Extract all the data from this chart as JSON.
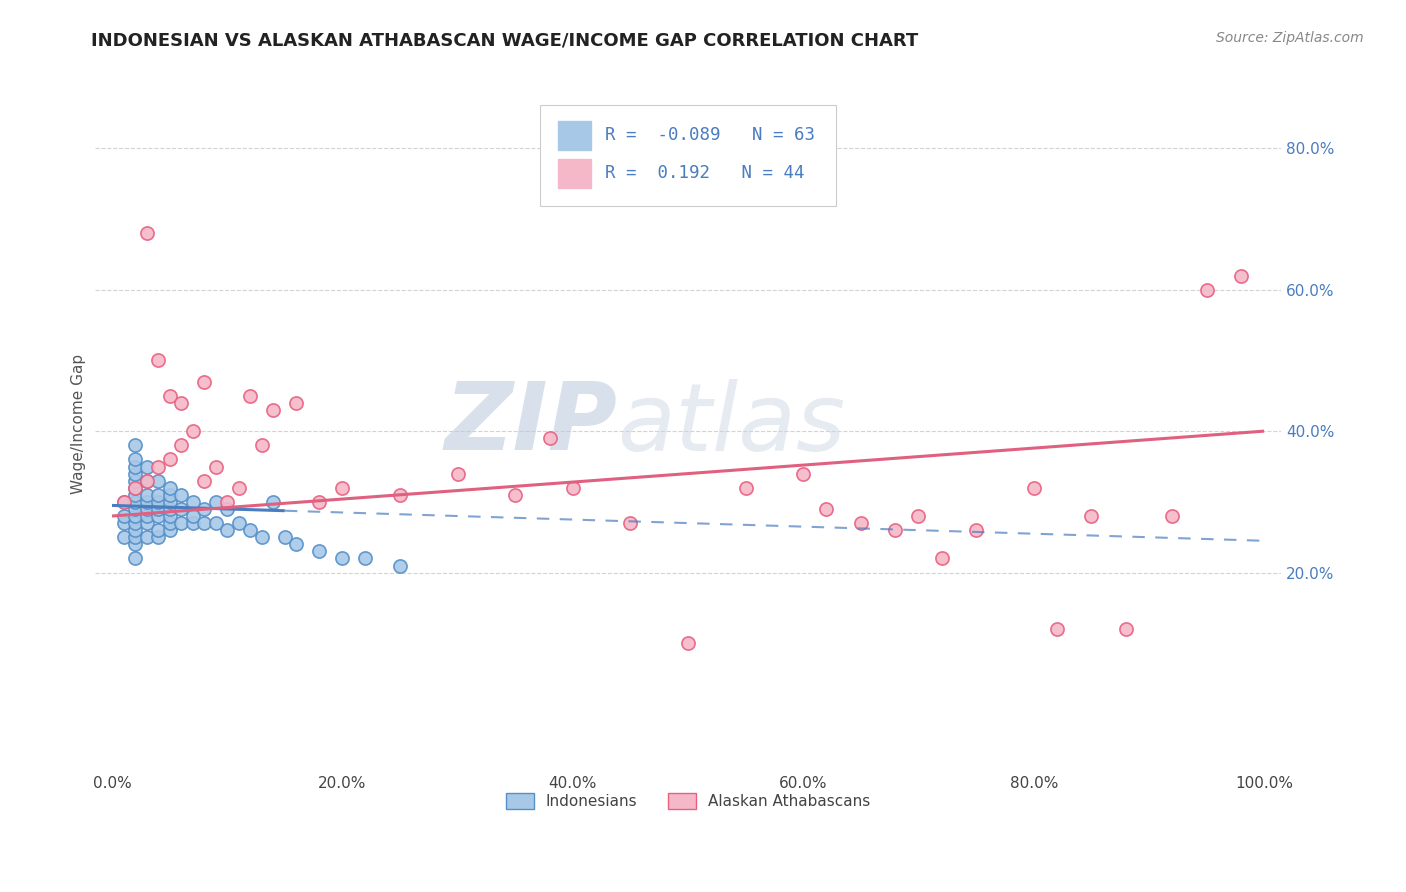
{
  "title": "INDONESIAN VS ALASKAN ATHABASCAN WAGE/INCOME GAP CORRELATION CHART",
  "source": "Source: ZipAtlas.com",
  "ylabel": "Wage/Income Gap",
  "legend_label1": "Indonesians",
  "legend_label2": "Alaskan Athabascans",
  "r1": -0.089,
  "n1": 63,
  "r2": 0.192,
  "n2": 44,
  "color1_face": "#a8c8e8",
  "color2_face": "#f4b8c8",
  "color1_edge": "#5590c8",
  "color2_edge": "#e86080",
  "line1_color": "#4a7cc0",
  "line2_color": "#e06080",
  "watermark_color": "#d0dcea",
  "xlim": [
    0.0,
    1.0
  ],
  "ylim": [
    -0.08,
    0.9
  ],
  "xticks": [
    0.0,
    0.2,
    0.4,
    0.6,
    0.8,
    1.0
  ],
  "yticks": [
    0.2,
    0.4,
    0.6,
    0.8
  ],
  "indonesians_x": [
    0.01,
    0.01,
    0.01,
    0.01,
    0.02,
    0.02,
    0.02,
    0.02,
    0.02,
    0.02,
    0.02,
    0.02,
    0.02,
    0.02,
    0.02,
    0.02,
    0.02,
    0.02,
    0.02,
    0.03,
    0.03,
    0.03,
    0.03,
    0.03,
    0.03,
    0.03,
    0.03,
    0.04,
    0.04,
    0.04,
    0.04,
    0.04,
    0.04,
    0.04,
    0.05,
    0.05,
    0.05,
    0.05,
    0.05,
    0.05,
    0.05,
    0.06,
    0.06,
    0.06,
    0.07,
    0.07,
    0.07,
    0.08,
    0.08,
    0.09,
    0.09,
    0.1,
    0.1,
    0.11,
    0.12,
    0.13,
    0.14,
    0.15,
    0.16,
    0.18,
    0.2,
    0.22,
    0.25
  ],
  "indonesians_y": [
    0.25,
    0.27,
    0.28,
    0.3,
    0.22,
    0.24,
    0.25,
    0.26,
    0.27,
    0.28,
    0.29,
    0.3,
    0.31,
    0.32,
    0.33,
    0.34,
    0.35,
    0.36,
    0.38,
    0.25,
    0.27,
    0.28,
    0.29,
    0.3,
    0.31,
    0.33,
    0.35,
    0.25,
    0.26,
    0.28,
    0.29,
    0.3,
    0.31,
    0.33,
    0.26,
    0.27,
    0.28,
    0.29,
    0.3,
    0.31,
    0.32,
    0.27,
    0.29,
    0.31,
    0.27,
    0.28,
    0.3,
    0.27,
    0.29,
    0.27,
    0.3,
    0.26,
    0.29,
    0.27,
    0.26,
    0.25,
    0.3,
    0.25,
    0.24,
    0.23,
    0.22,
    0.22,
    0.21
  ],
  "athabascans_x": [
    0.01,
    0.02,
    0.03,
    0.03,
    0.04,
    0.04,
    0.05,
    0.05,
    0.06,
    0.06,
    0.07,
    0.08,
    0.08,
    0.09,
    0.1,
    0.11,
    0.12,
    0.13,
    0.14,
    0.16,
    0.18,
    0.2,
    0.25,
    0.3,
    0.35,
    0.38,
    0.4,
    0.45,
    0.5,
    0.55,
    0.6,
    0.62,
    0.65,
    0.68,
    0.7,
    0.72,
    0.75,
    0.8,
    0.82,
    0.85,
    0.88,
    0.92,
    0.95,
    0.98
  ],
  "athabascans_y": [
    0.3,
    0.32,
    0.68,
    0.33,
    0.5,
    0.35,
    0.45,
    0.36,
    0.44,
    0.38,
    0.4,
    0.33,
    0.47,
    0.35,
    0.3,
    0.32,
    0.45,
    0.38,
    0.43,
    0.44,
    0.3,
    0.32,
    0.31,
    0.34,
    0.31,
    0.39,
    0.32,
    0.27,
    0.1,
    0.32,
    0.34,
    0.29,
    0.27,
    0.26,
    0.28,
    0.22,
    0.26,
    0.32,
    0.12,
    0.28,
    0.12,
    0.28,
    0.6,
    0.62
  ],
  "indo_line_solid_end": 0.15,
  "ath_line_start": 0.0,
  "ath_line_end": 1.0
}
